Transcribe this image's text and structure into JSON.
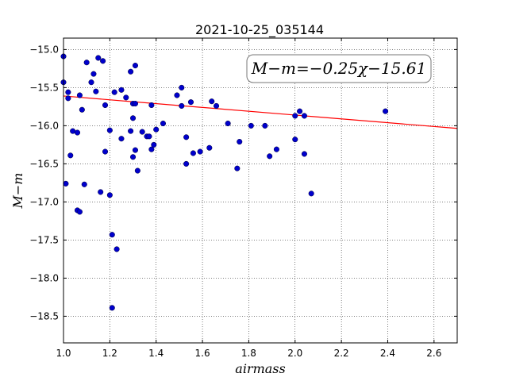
{
  "chart_data": {
    "type": "scatter",
    "title": "2021-10-25_035144",
    "xlabel": "airmass",
    "ylabel": "M−m",
    "xlim": [
      1.0,
      2.7
    ],
    "ylim": [
      -18.85,
      -14.85
    ],
    "y_inverted": true,
    "grid": true,
    "x_ticks": [
      1.0,
      1.2,
      1.4,
      1.6,
      1.8,
      2.0,
      2.2,
      2.4,
      2.6
    ],
    "x_tick_labels": [
      "1.0",
      "1.2",
      "1.4",
      "1.6",
      "1.8",
      "2.0",
      "2.2",
      "2.4",
      "2.6"
    ],
    "y_ticks": [
      -15.0,
      -15.5,
      -16.0,
      -16.5,
      -17.0,
      -17.5,
      -18.0,
      -18.5
    ],
    "y_tick_labels": [
      "−15.0",
      "−15.5",
      "−16.0",
      "−16.5",
      "−17.0",
      "−17.5",
      "−18.0",
      "−18.5"
    ],
    "annotation": "M−m=−0.25χ−15.61",
    "fit": {
      "slope": -0.25,
      "intercept": -15.61,
      "color": "#ff0000"
    },
    "marker_color": "#0000cc",
    "points": [
      {
        "x": 1.0,
        "y": -15.09
      },
      {
        "x": 1.0,
        "y": -15.43
      },
      {
        "x": 1.01,
        "y": -16.76
      },
      {
        "x": 1.02,
        "y": -15.56
      },
      {
        "x": 1.02,
        "y": -15.64
      },
      {
        "x": 1.03,
        "y": -16.39
      },
      {
        "x": 1.04,
        "y": -16.07
      },
      {
        "x": 1.06,
        "y": -16.09
      },
      {
        "x": 1.06,
        "y": -17.11
      },
      {
        "x": 1.07,
        "y": -17.13
      },
      {
        "x": 1.07,
        "y": -15.6
      },
      {
        "x": 1.08,
        "y": -15.79
      },
      {
        "x": 1.09,
        "y": -16.77
      },
      {
        "x": 1.1,
        "y": -15.17
      },
      {
        "x": 1.12,
        "y": -15.43
      },
      {
        "x": 1.13,
        "y": -15.32
      },
      {
        "x": 1.14,
        "y": -15.55
      },
      {
        "x": 1.15,
        "y": -15.11
      },
      {
        "x": 1.16,
        "y": -16.87
      },
      {
        "x": 1.17,
        "y": -15.15
      },
      {
        "x": 1.18,
        "y": -15.73
      },
      {
        "x": 1.18,
        "y": -16.34
      },
      {
        "x": 1.2,
        "y": -16.91
      },
      {
        "x": 1.2,
        "y": -16.06
      },
      {
        "x": 1.21,
        "y": -17.43
      },
      {
        "x": 1.21,
        "y": -18.39
      },
      {
        "x": 1.22,
        "y": -15.56
      },
      {
        "x": 1.23,
        "y": -17.62
      },
      {
        "x": 1.25,
        "y": -16.17
      },
      {
        "x": 1.25,
        "y": -15.53
      },
      {
        "x": 1.27,
        "y": -15.63
      },
      {
        "x": 1.29,
        "y": -16.07
      },
      {
        "x": 1.29,
        "y": -15.29
      },
      {
        "x": 1.3,
        "y": -15.9
      },
      {
        "x": 1.3,
        "y": -16.41
      },
      {
        "x": 1.3,
        "y": -15.71
      },
      {
        "x": 1.31,
        "y": -15.21
      },
      {
        "x": 1.31,
        "y": -15.71
      },
      {
        "x": 1.31,
        "y": -16.32
      },
      {
        "x": 1.32,
        "y": -16.59
      },
      {
        "x": 1.34,
        "y": -16.08
      },
      {
        "x": 1.36,
        "y": -16.14
      },
      {
        "x": 1.37,
        "y": -16.14
      },
      {
        "x": 1.38,
        "y": -15.73
      },
      {
        "x": 1.38,
        "y": -16.31
      },
      {
        "x": 1.39,
        "y": -16.25
      },
      {
        "x": 1.4,
        "y": -16.05
      },
      {
        "x": 1.43,
        "y": -15.97
      },
      {
        "x": 1.49,
        "y": -15.6
      },
      {
        "x": 1.51,
        "y": -15.5
      },
      {
        "x": 1.51,
        "y": -15.74
      },
      {
        "x": 1.53,
        "y": -16.15
      },
      {
        "x": 1.53,
        "y": -16.5
      },
      {
        "x": 1.55,
        "y": -15.69
      },
      {
        "x": 1.56,
        "y": -16.36
      },
      {
        "x": 1.59,
        "y": -16.34
      },
      {
        "x": 1.63,
        "y": -16.29
      },
      {
        "x": 1.64,
        "y": -15.68
      },
      {
        "x": 1.66,
        "y": -15.74
      },
      {
        "x": 1.71,
        "y": -15.97
      },
      {
        "x": 1.75,
        "y": -16.56
      },
      {
        "x": 1.76,
        "y": -16.21
      },
      {
        "x": 1.81,
        "y": -16.0
      },
      {
        "x": 1.87,
        "y": -16.0
      },
      {
        "x": 1.89,
        "y": -16.4
      },
      {
        "x": 1.92,
        "y": -16.31
      },
      {
        "x": 2.0,
        "y": -16.18
      },
      {
        "x": 2.0,
        "y": -15.87
      },
      {
        "x": 2.02,
        "y": -15.81
      },
      {
        "x": 2.04,
        "y": -15.87
      },
      {
        "x": 2.04,
        "y": -16.37
      },
      {
        "x": 2.07,
        "y": -16.89
      },
      {
        "x": 2.39,
        "y": -15.81
      }
    ]
  }
}
